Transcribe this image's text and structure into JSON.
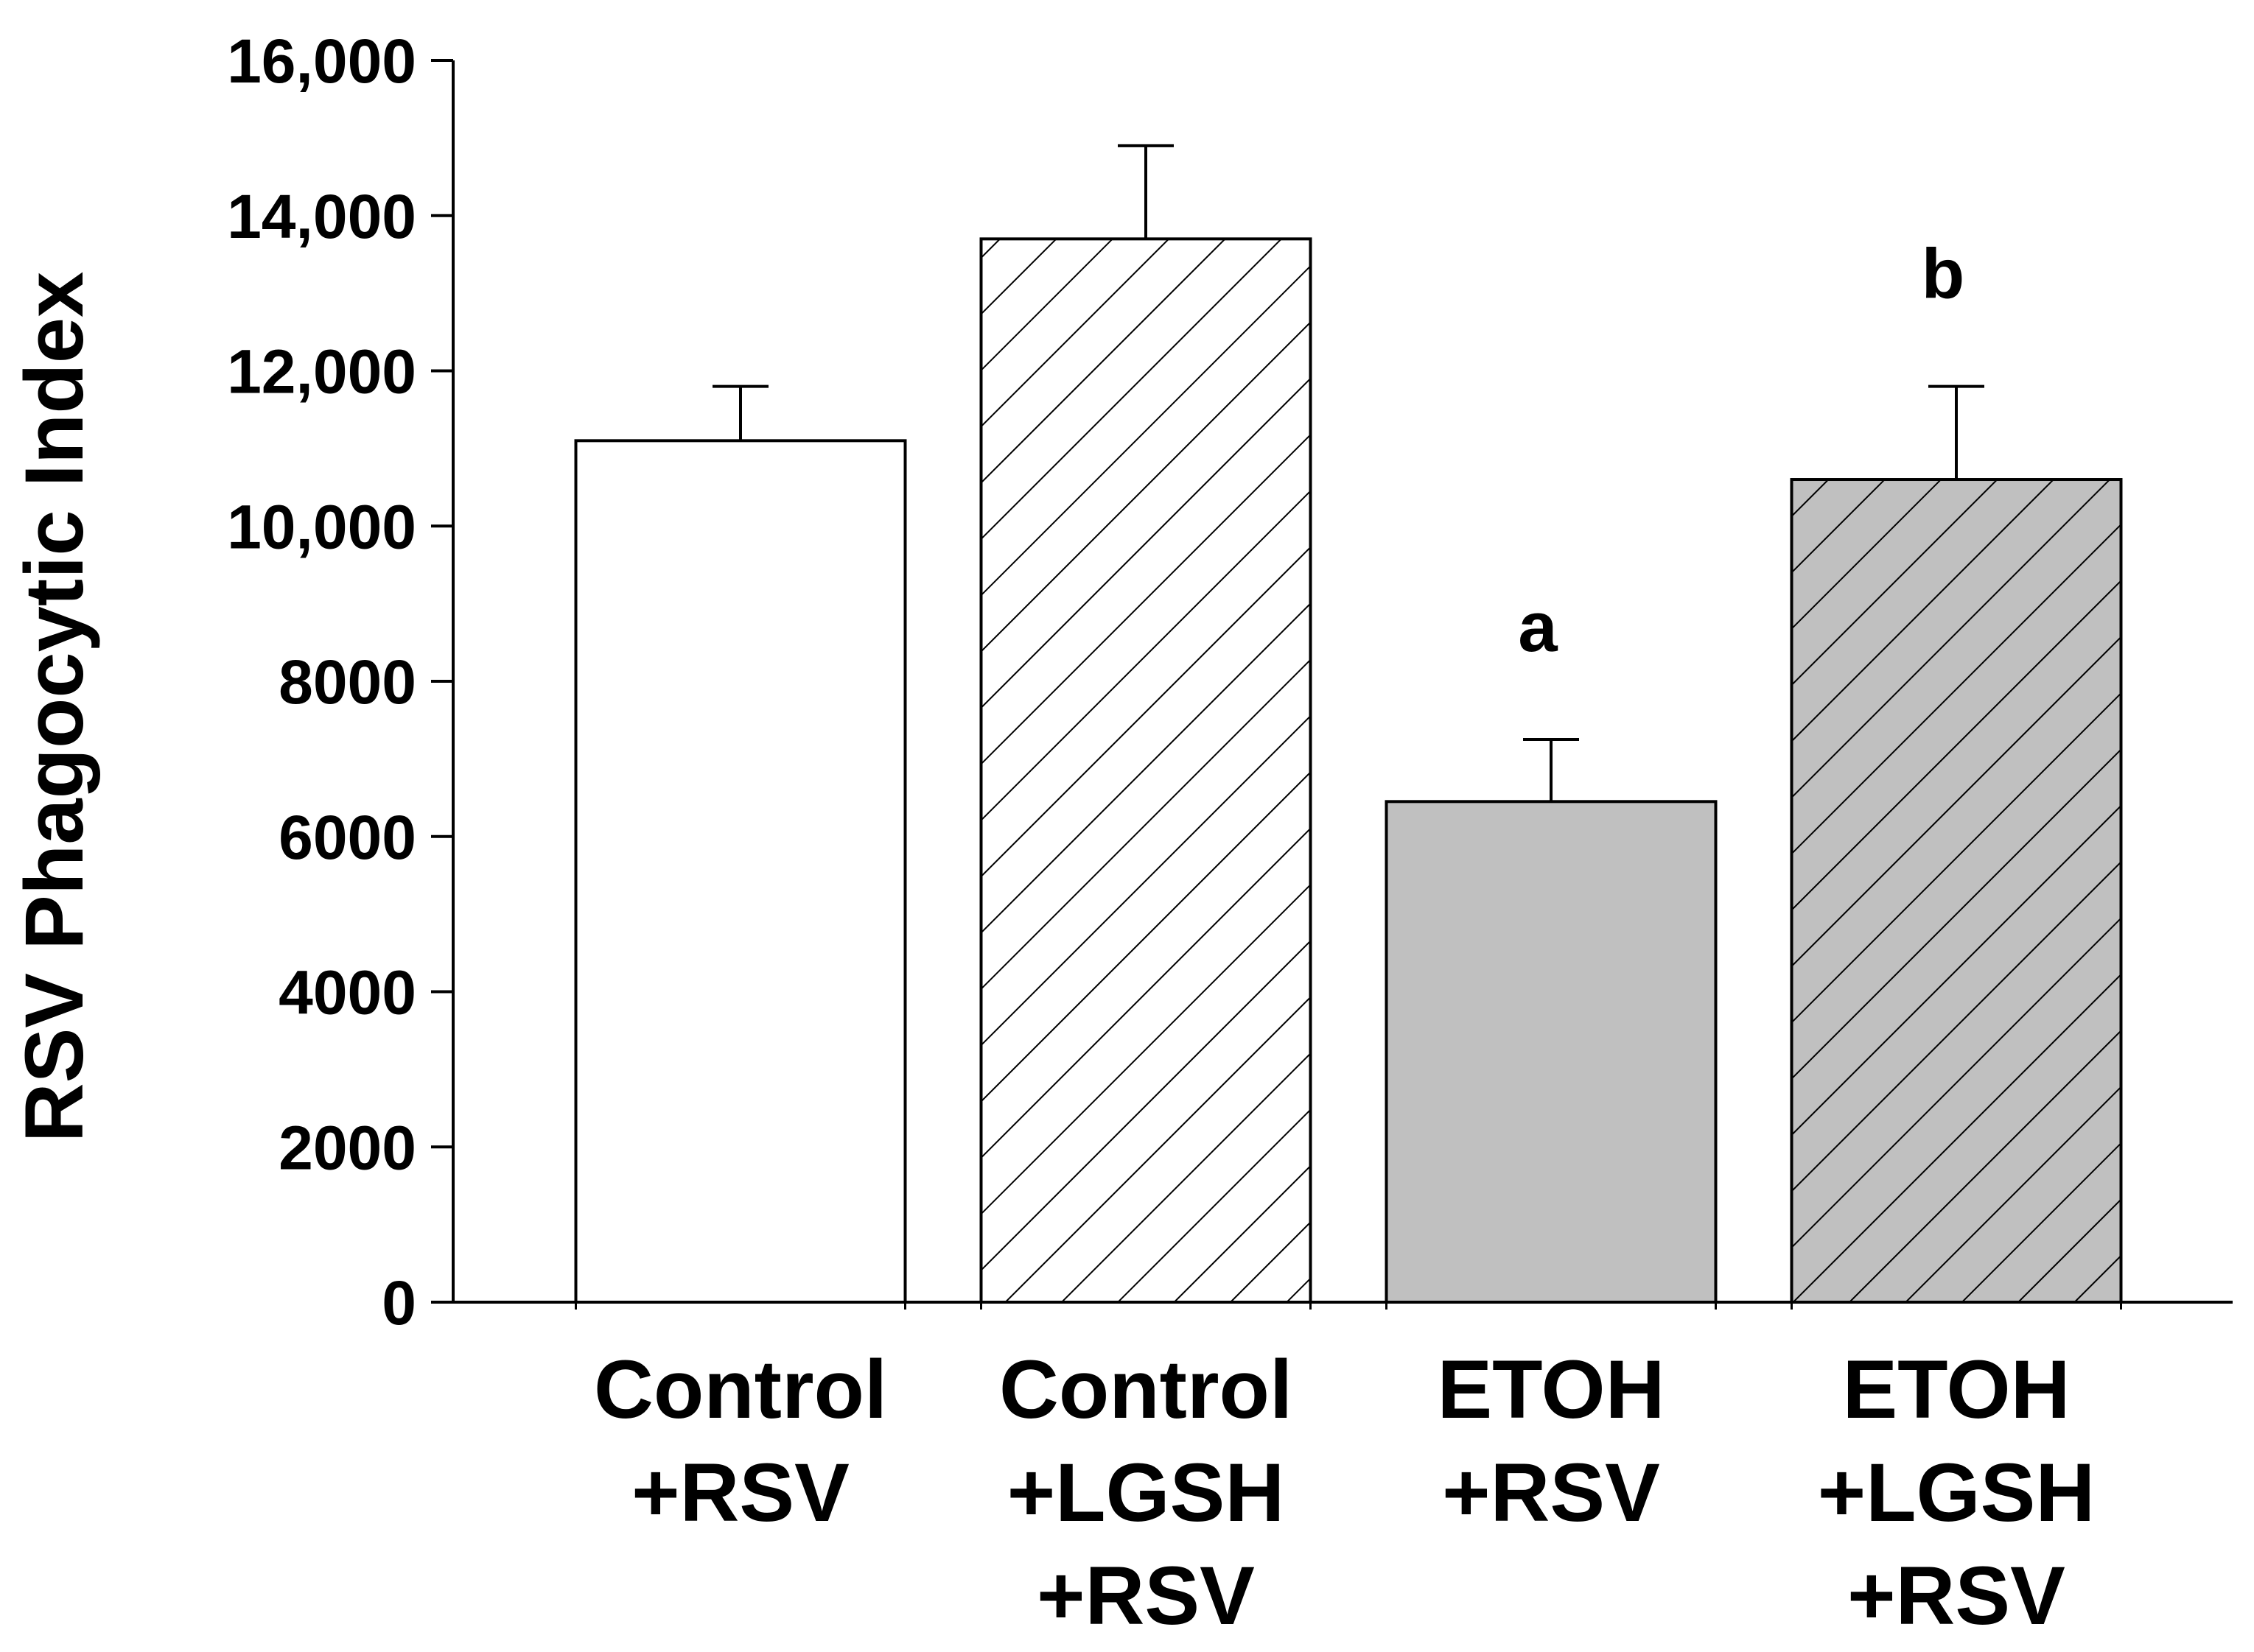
{
  "chart_data": {
    "type": "bar",
    "title": "",
    "xlabel": "",
    "ylabel": "RSV Phagocytic Index",
    "ylim": [
      0,
      16000
    ],
    "yticks": [
      0,
      2000,
      4000,
      6000,
      8000,
      10000,
      12000,
      14000,
      16000
    ],
    "ytick_labels": [
      "0",
      "2000",
      "4000",
      "6000",
      "8000",
      "10,000",
      "12,000",
      "14,000",
      "16,000"
    ],
    "grid": false,
    "legend": "none",
    "categories": [
      [
        "Control",
        "+RSV"
      ],
      [
        "Control",
        "+LGSH",
        "+RSV"
      ],
      [
        "ETOH",
        "+RSV"
      ],
      [
        "ETOH",
        "+LGSH",
        "+RSV"
      ]
    ],
    "values": [
      11100,
      13700,
      6450,
      10600
    ],
    "errors": [
      700,
      1200,
      800,
      1200
    ],
    "fills": [
      "#ffffff",
      "#ffffff",
      "#c0c0c0",
      "#c0c0c0"
    ],
    "hatched": [
      false,
      true,
      false,
      true
    ],
    "annotations": [
      "",
      "",
      "a",
      "b"
    ]
  }
}
